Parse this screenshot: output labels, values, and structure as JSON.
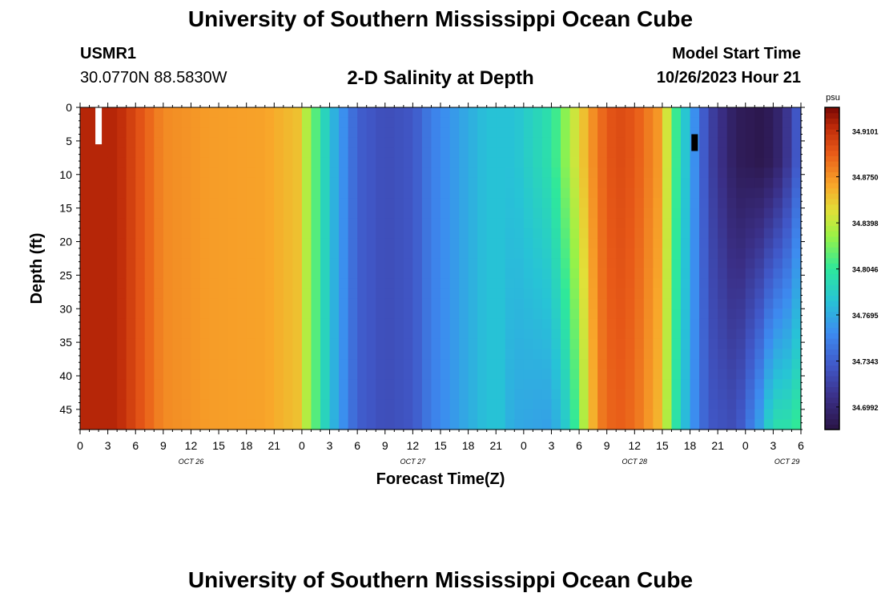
{
  "header": {
    "title": "University of Southern Mississippi Ocean Cube",
    "station": "USMR1",
    "coordinates": "30.0770N  88.5830W",
    "subtitle": "2-D Salinity at Depth",
    "model_start_label": "Model Start Time",
    "model_start_value": "10/26/2023 Hour 21"
  },
  "footer": {
    "title": "University of Southern Mississippi Ocean Cube"
  },
  "chart_data": {
    "type": "heatmap",
    "title": "2-D Salinity at Depth",
    "xlabel": "Forecast Time(Z)",
    "ylabel": "Depth (ft)",
    "x_ticks": [
      "0",
      "3",
      "6",
      "9",
      "12",
      "15",
      "18",
      "21",
      "0",
      "3",
      "6",
      "9",
      "12",
      "15",
      "18",
      "21",
      "0",
      "3",
      "6",
      "9",
      "12",
      "15",
      "18",
      "21",
      "0",
      "3",
      "6"
    ],
    "date_labels": [
      {
        "label": "OCT 26",
        "tick_index": 4
      },
      {
        "label": "OCT 27",
        "tick_index": 12
      },
      {
        "label": "OCT 28",
        "tick_index": 20
      },
      {
        "label": "OCT 29",
        "tick_index": 25.5
      }
    ],
    "x_range_hours": [
      0,
      78
    ],
    "y_ticks": [
      0,
      5,
      10,
      15,
      20,
      25,
      30,
      35,
      40,
      45
    ],
    "ylim": [
      0,
      48
    ],
    "y_inverted": true,
    "colorbar": {
      "unit": "psu",
      "tick_labels": [
        "34.9101",
        "34.8750",
        "34.8398",
        "34.8046",
        "34.7695",
        "34.7343",
        "34.6992"
      ],
      "min": 34.682,
      "max": 34.928
    },
    "profile": {
      "hours": [
        0,
        4,
        6,
        9,
        14,
        20,
        23.5,
        25,
        27,
        30,
        33,
        36,
        38,
        42,
        44,
        47,
        51,
        53,
        56,
        58,
        60,
        63,
        64,
        66,
        68,
        71,
        74,
        76,
        78
      ],
      "salinity": [
        34.915,
        34.915,
        34.9,
        34.878,
        34.872,
        34.87,
        34.86,
        34.825,
        34.78,
        34.735,
        34.725,
        34.73,
        34.75,
        34.77,
        34.78,
        34.78,
        34.8,
        34.835,
        34.885,
        34.9,
        34.895,
        34.87,
        34.82,
        34.77,
        34.72,
        34.69,
        34.685,
        34.7,
        34.74
      ]
    },
    "depth_effect": {
      "deep_delta": [
        {
          "hour": 46,
          "delta": -0.005
        },
        {
          "hour": 50,
          "delta": -0.03
        },
        {
          "hour": 53,
          "delta": -0.045
        },
        {
          "hour": 56,
          "delta": -0.005
        },
        {
          "hour": 63,
          "delta": -0.01
        },
        {
          "hour": 66,
          "delta": -0.005
        },
        {
          "hour": 71,
          "delta": 0.035
        },
        {
          "hour": 73,
          "delta": 0.07
        },
        {
          "hour": 75,
          "delta": 0.11
        },
        {
          "hour": 78,
          "delta": 0.07
        }
      ]
    },
    "missing_cells": [
      {
        "hour": 2,
        "depth_from": 0,
        "depth_to": 5.5,
        "color": "#ffffff"
      },
      {
        "hour": 66.5,
        "depth_from": 4,
        "depth_to": 6.5,
        "color": "#000000"
      }
    ]
  }
}
